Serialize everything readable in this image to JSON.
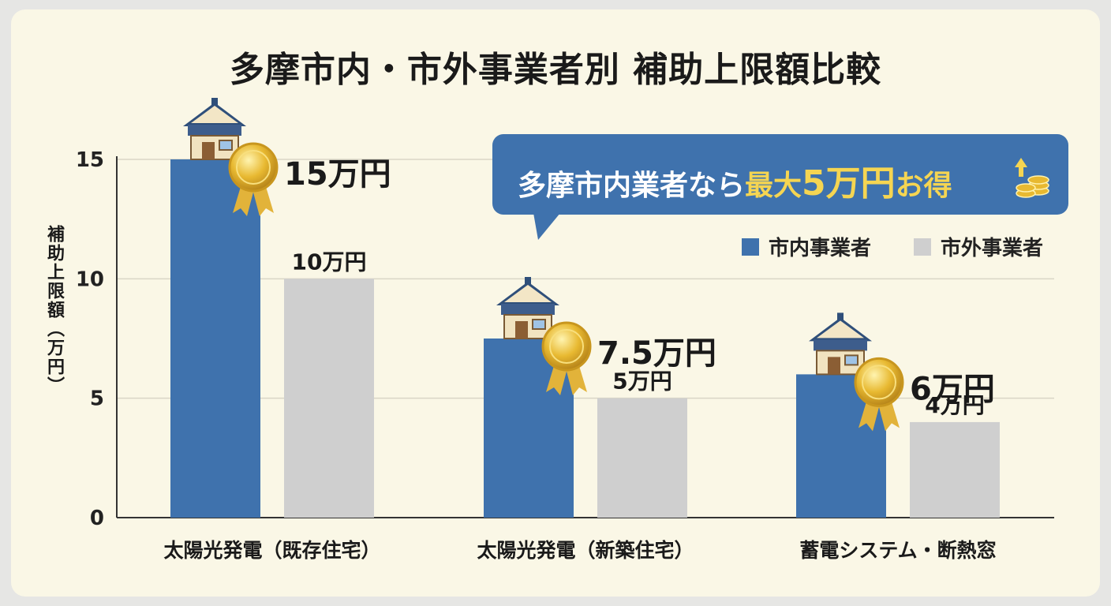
{
  "chart_data": {
    "type": "bar",
    "title": "多摩市内・市外事業者別 補助上限額比較",
    "ylabel": "補助上限額（万円）",
    "xlabel": "",
    "ylim": [
      0,
      15
    ],
    "yticks": [
      0,
      5,
      10,
      15
    ],
    "grid": true,
    "legend_position": "top-right",
    "categories": [
      "太陽光発電（既存住宅）",
      "太陽光発電（新築住宅）",
      "蓄電システム・断熱窓"
    ],
    "series": [
      {
        "name": "市内事業者",
        "color": "#3f72ad",
        "values": [
          15,
          7.5,
          6
        ],
        "labels": [
          "15万円",
          "7.5万円",
          "6万円"
        ]
      },
      {
        "name": "市外事業者",
        "color": "#cfcfcf",
        "values": [
          10,
          5,
          4
        ],
        "labels": [
          "10万円",
          "5万円",
          "4万円"
        ]
      }
    ],
    "callout": {
      "prefix": "多摩市内業者なら",
      "highlight_a": "最大",
      "highlight_b": "5万円",
      "highlight_c": "お得"
    }
  }
}
